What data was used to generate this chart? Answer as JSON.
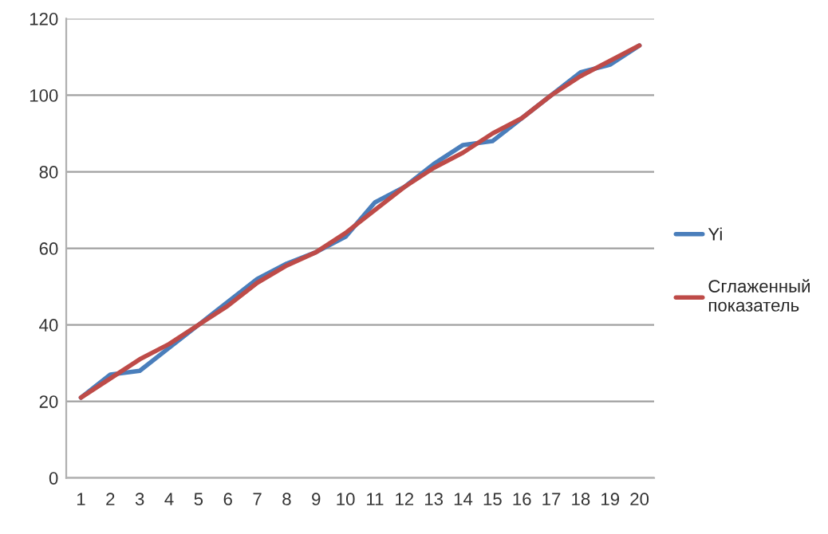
{
  "chart_data": {
    "type": "line",
    "categories": [
      "1",
      "2",
      "3",
      "4",
      "5",
      "6",
      "7",
      "8",
      "9",
      "10",
      "11",
      "12",
      "13",
      "14",
      "15",
      "16",
      "17",
      "18",
      "19",
      "20"
    ],
    "series": [
      {
        "name": "Yi",
        "color": "#4a7ebb",
        "values": [
          21,
          27,
          28,
          34,
          40,
          46,
          52,
          56,
          59,
          63,
          72,
          76,
          82,
          87,
          88,
          94,
          100,
          106,
          108,
          113
        ]
      },
      {
        "name": "Сглаженный показатель",
        "color": "#be4b48",
        "values": [
          21,
          26,
          31,
          35,
          40,
          45,
          51,
          55.5,
          59,
          64,
          70,
          76,
          81,
          85,
          90,
          94,
          100,
          105,
          109,
          113
        ]
      }
    ],
    "ylim": [
      0,
      120
    ],
    "yticks": [
      0,
      20,
      40,
      60,
      80,
      100,
      120
    ],
    "grid": "y",
    "legend": "right",
    "marker": "none",
    "line_style": "solid"
  }
}
